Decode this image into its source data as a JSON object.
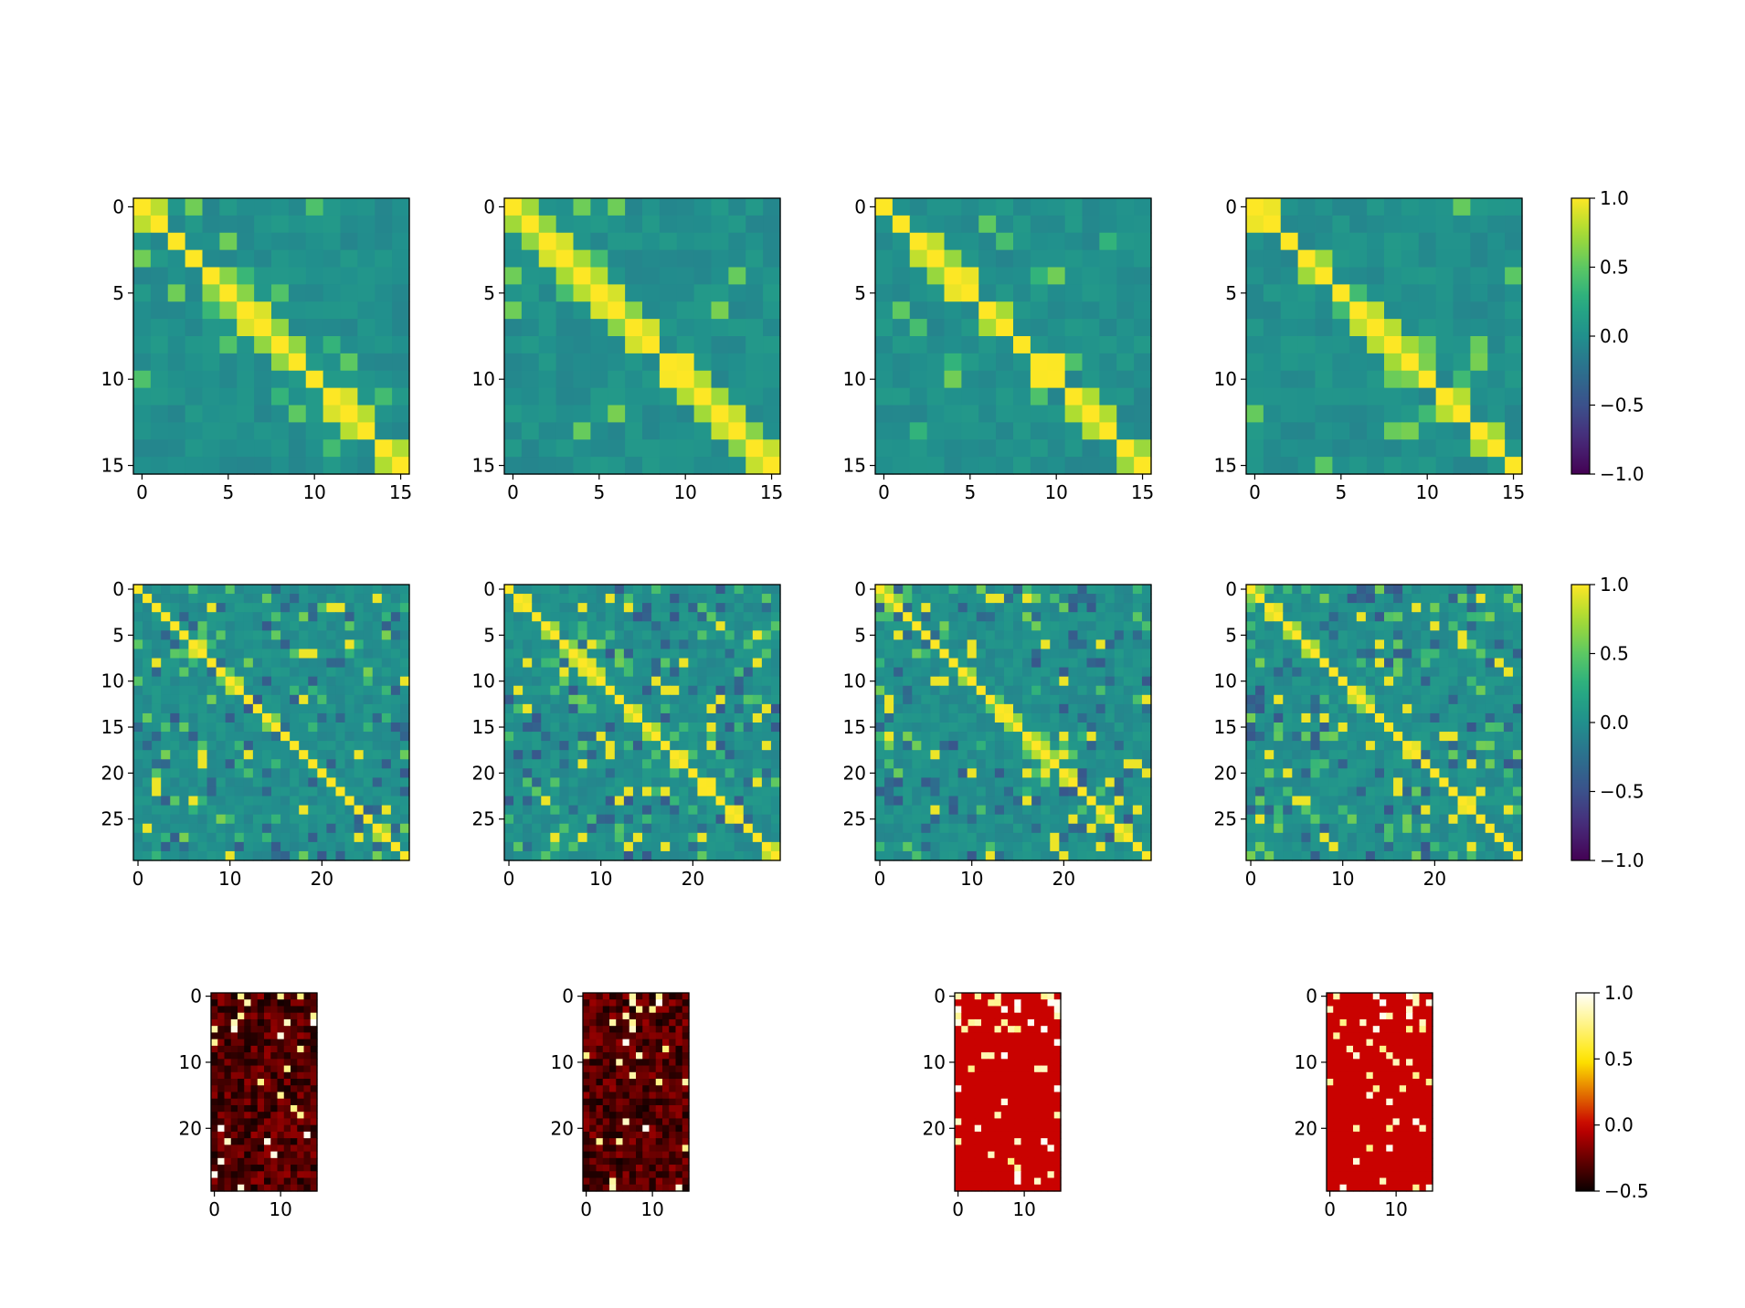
{
  "chart_data": [
    {
      "type": "heatmap",
      "group": "row1",
      "panel": 1,
      "rows": 16,
      "cols": 16,
      "colormap": "viridis",
      "vmin": -1,
      "vmax": 1,
      "xticks": [
        0,
        5,
        10,
        15
      ],
      "yticks": [
        0,
        5,
        10,
        15
      ],
      "seed": 11
    },
    {
      "type": "heatmap",
      "group": "row1",
      "panel": 2,
      "rows": 16,
      "cols": 16,
      "colormap": "viridis",
      "vmin": -1,
      "vmax": 1,
      "xticks": [
        0,
        5,
        10,
        15
      ],
      "yticks": [
        0,
        5,
        10,
        15
      ],
      "seed": 12
    },
    {
      "type": "heatmap",
      "group": "row1",
      "panel": 3,
      "rows": 16,
      "cols": 16,
      "colormap": "viridis",
      "vmin": -1,
      "vmax": 1,
      "xticks": [
        0,
        5,
        10,
        15
      ],
      "yticks": [
        0,
        5,
        10,
        15
      ],
      "seed": 13
    },
    {
      "type": "heatmap",
      "group": "row1",
      "panel": 4,
      "rows": 16,
      "cols": 16,
      "colormap": "viridis",
      "vmin": -1,
      "vmax": 1,
      "xticks": [
        0,
        5,
        10,
        15
      ],
      "yticks": [
        0,
        5,
        10,
        15
      ],
      "seed": 14
    },
    {
      "type": "heatmap",
      "group": "row2",
      "panel": 1,
      "rows": 30,
      "cols": 30,
      "colormap": "viridis",
      "vmin": -1,
      "vmax": 1,
      "xticks": [
        0,
        10,
        20
      ],
      "yticks": [
        0,
        5,
        10,
        15,
        20,
        25
      ],
      "seed": 21
    },
    {
      "type": "heatmap",
      "group": "row2",
      "panel": 2,
      "rows": 30,
      "cols": 30,
      "colormap": "viridis",
      "vmin": -1,
      "vmax": 1,
      "xticks": [
        0,
        10,
        20
      ],
      "yticks": [
        0,
        5,
        10,
        15,
        20,
        25
      ],
      "seed": 22
    },
    {
      "type": "heatmap",
      "group": "row2",
      "panel": 3,
      "rows": 30,
      "cols": 30,
      "colormap": "viridis",
      "vmin": -1,
      "vmax": 1,
      "xticks": [
        0,
        10,
        20
      ],
      "yticks": [
        0,
        5,
        10,
        15,
        20,
        25
      ],
      "seed": 23
    },
    {
      "type": "heatmap",
      "group": "row2",
      "panel": 4,
      "rows": 30,
      "cols": 30,
      "colormap": "viridis",
      "vmin": -1,
      "vmax": 1,
      "xticks": [
        0,
        10,
        20
      ],
      "yticks": [
        0,
        5,
        10,
        15,
        20,
        25
      ],
      "seed": 24
    },
    {
      "type": "heatmap",
      "group": "row3",
      "panel": 1,
      "rows": 30,
      "cols": 16,
      "colormap": "hot",
      "vmin": -0.5,
      "vmax": 1,
      "xticks": [
        0,
        10
      ],
      "yticks": [
        0,
        10,
        20
      ],
      "seed": 31,
      "background": -0.3
    },
    {
      "type": "heatmap",
      "group": "row3",
      "panel": 2,
      "rows": 30,
      "cols": 16,
      "colormap": "hot",
      "vmin": -0.5,
      "vmax": 1,
      "xticks": [
        0,
        10
      ],
      "yticks": [
        0,
        10,
        20
      ],
      "seed": 32,
      "background": -0.3
    },
    {
      "type": "heatmap",
      "group": "row3",
      "panel": 3,
      "rows": 30,
      "cols": 16,
      "colormap": "hot",
      "vmin": -0.5,
      "vmax": 1,
      "xticks": [
        0,
        10
      ],
      "yticks": [
        0,
        10,
        20
      ],
      "seed": 33,
      "background": 0.0
    },
    {
      "type": "heatmap",
      "group": "row3",
      "panel": 4,
      "rows": 30,
      "cols": 16,
      "colormap": "hot",
      "vmin": -0.5,
      "vmax": 1,
      "xticks": [
        0,
        10
      ],
      "yticks": [
        0,
        10,
        20
      ],
      "seed": 34,
      "background": 0.0
    }
  ],
  "colorbars": [
    {
      "group": "row1",
      "colormap": "viridis",
      "vmin": -1,
      "vmax": 1,
      "ticks": [
        1.0,
        0.5,
        0.0,
        -0.5,
        -1.0
      ],
      "labels": [
        "1.0",
        "0.5",
        "0.0",
        "−0.5",
        "−1.0"
      ]
    },
    {
      "group": "row2",
      "colormap": "viridis",
      "vmin": -1,
      "vmax": 1,
      "ticks": [
        1.0,
        0.5,
        0.0,
        -0.5,
        -1.0
      ],
      "labels": [
        "1.0",
        "0.5",
        "0.0",
        "−0.5",
        "−1.0"
      ]
    },
    {
      "group": "row3",
      "colormap": "hot",
      "vmin": -0.5,
      "vmax": 1,
      "ticks": [
        1.0,
        0.5,
        0.0,
        -0.5
      ],
      "labels": [
        "1.0",
        "0.5",
        "0.0",
        "−0.5"
      ]
    }
  ]
}
